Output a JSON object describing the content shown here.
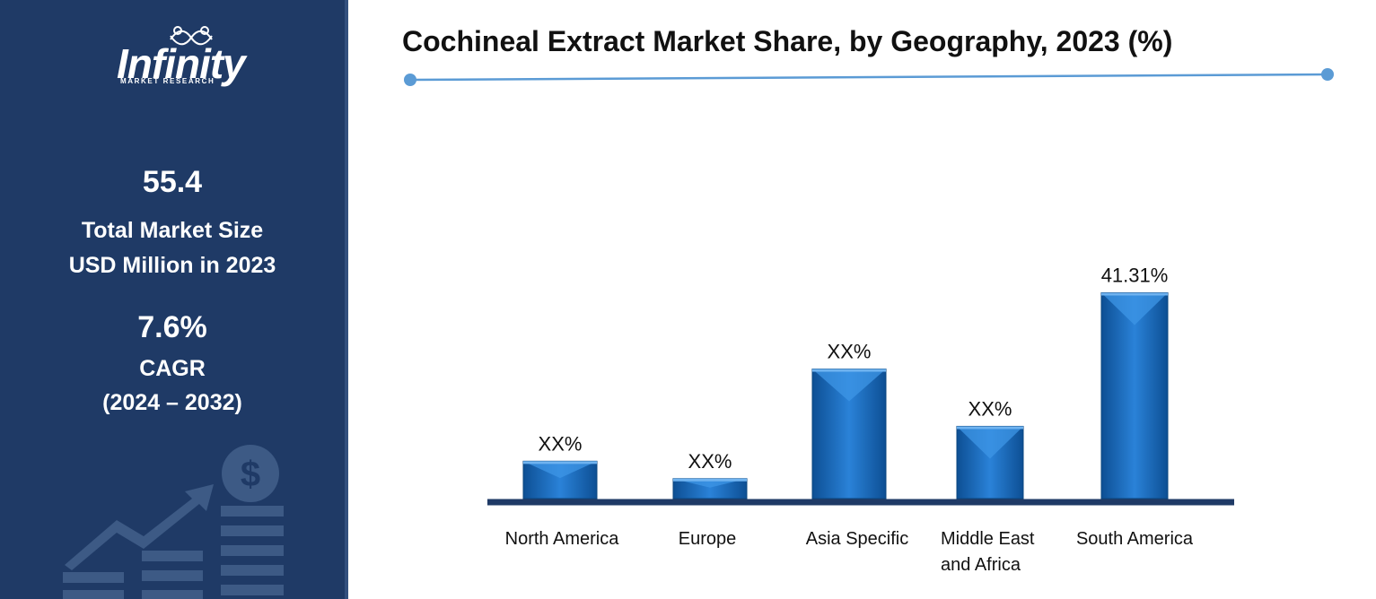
{
  "sidebar": {
    "logo": {
      "word": "Infinity",
      "sub": "MARKET RESEARCH"
    },
    "market_size": {
      "value": "55.4",
      "label_line1": "Total Market Size",
      "label_line2": "USD Million in 2023"
    },
    "cagr": {
      "value": "7.6%",
      "label_line1": "CAGR",
      "label_line2": "(2024 – 2032)"
    },
    "icons": [
      "dollar-coin-icon",
      "growth-arrow-icon"
    ]
  },
  "colors": {
    "sidebar_bg": "#1f3a66",
    "bar": "#1a6fc4",
    "bar_dark": "#0d4f94",
    "axis": "#1f3a66",
    "accent": "#5b9bd5"
  },
  "chart_data": {
    "type": "bar",
    "title": "Cochineal Extract Market Share, by Geography, 2023 (%)",
    "categories": [
      "North America",
      "Europe",
      "Asia Specific",
      "Middle East and Africa",
      "South America"
    ],
    "values": [
      7.5,
      4.0,
      26.0,
      14.5,
      41.31
    ],
    "data_labels": [
      "XX%",
      "XX%",
      "XX%",
      "XX%",
      "41.31%"
    ],
    "ylim": [
      0,
      45
    ],
    "grid": false,
    "legend": "none"
  }
}
